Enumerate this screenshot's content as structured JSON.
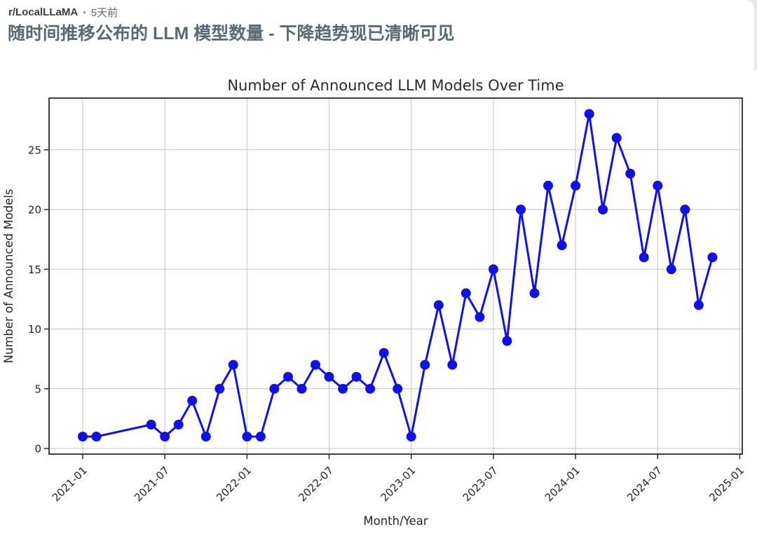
{
  "post": {
    "subreddit": "r/LocalLLaMA",
    "separator": "•",
    "time_ago": "5天前",
    "title": "随时间推移公布的 LLM 模型数量 - 下降趋势现已清晰可见"
  },
  "chart_data": {
    "type": "line",
    "title": "Number of Announced LLM Models Over Time",
    "xlabel": "Month/Year",
    "ylabel": "Number of Announced Models",
    "x": [
      "2021-01",
      "2021-02",
      "2021-06",
      "2021-07",
      "2021-08",
      "2021-09",
      "2021-10",
      "2021-11",
      "2021-12",
      "2022-01",
      "2022-02",
      "2022-03",
      "2022-04",
      "2022-05",
      "2022-06",
      "2022-07",
      "2022-08",
      "2022-09",
      "2022-10",
      "2022-11",
      "2022-12",
      "2023-01",
      "2023-02",
      "2023-03",
      "2023-04",
      "2023-05",
      "2023-06",
      "2023-07",
      "2023-08",
      "2023-09",
      "2023-10",
      "2023-11",
      "2023-12",
      "2024-01",
      "2024-02",
      "2024-03",
      "2024-04",
      "2024-05",
      "2024-06",
      "2024-07",
      "2024-08",
      "2024-09",
      "2024-10",
      "2024-11"
    ],
    "values": [
      1,
      1,
      2,
      1,
      2,
      4,
      1,
      5,
      7,
      1,
      1,
      5,
      6,
      5,
      7,
      6,
      5,
      6,
      5,
      8,
      5,
      1,
      7,
      12,
      7,
      13,
      11,
      15,
      9,
      20,
      13,
      22,
      17,
      22,
      28,
      20,
      26,
      23,
      16,
      22,
      15,
      20,
      12,
      16
    ],
    "x_tick_labels": [
      "2021-01",
      "2021-07",
      "2022-01",
      "2022-07",
      "2023-01",
      "2023-07",
      "2024-01",
      "2024-07",
      "2025-01"
    ],
    "y_ticks": [
      0,
      5,
      10,
      15,
      20,
      25
    ],
    "ylim": [
      -0.4,
      29.4
    ],
    "grid": true,
    "legend": "none",
    "line_color": "#1010e8",
    "marker": "circle",
    "grid_color": "#c3c3c3",
    "axis_color": "#2a2a2a",
    "text_color": "#262626"
  }
}
